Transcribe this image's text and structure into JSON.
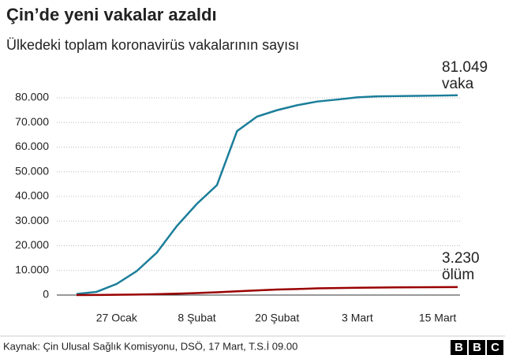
{
  "chart_data": {
    "type": "line",
    "title": "Çin’de yeni vakalar azaldı",
    "subtitle": "Ülkedeki toplam koronavirüs vakalarının sayısı",
    "categories": [
      null,
      null,
      "27 Ocak",
      null,
      null,
      null,
      "8 Şubat",
      null,
      null,
      null,
      "20 Şubat",
      null,
      null,
      null,
      "3 Mart",
      null,
      null,
      null,
      "15 Mart",
      null
    ],
    "series": [
      {
        "name": "vaka",
        "color": "#1b7e9a",
        "values": [
          440,
          1300,
          4500,
          9700,
          17200,
          28000,
          37000,
          44600,
          66500,
          72400,
          75000,
          77000,
          78500,
          79300,
          80200,
          80600,
          80700,
          80800,
          80900,
          81049
        ],
        "value_labels": [
          null,
          null,
          null,
          null,
          null,
          null,
          null,
          null,
          null,
          null,
          null,
          null,
          null,
          null,
          null,
          null,
          null,
          null,
          null,
          "81.049"
        ]
      },
      {
        "name": "ölüm",
        "color": "#990000",
        "values": [
          9,
          41,
          106,
          213,
          361,
          563,
          811,
          1113,
          1523,
          1868,
          2236,
          2445,
          2715,
          2835,
          2943,
          3042,
          3119,
          3176,
          3199,
          3230
        ],
        "value_labels": [
          null,
          null,
          null,
          null,
          null,
          null,
          null,
          null,
          null,
          null,
          null,
          null,
          null,
          null,
          null,
          null,
          null,
          null,
          null,
          "3.230"
        ]
      }
    ],
    "ylim": [
      0,
      80000
    ],
    "yticks": [
      0,
      {
        "value": 10000,
        "label": "10.000"
      },
      {
        "value": 20000,
        "label": "20.000"
      },
      {
        "value": 30000,
        "label": "30.000"
      },
      {
        "value": 40000,
        "label": "40.000"
      },
      {
        "value": 50000,
        "label": "50.000"
      },
      {
        "value": 60000,
        "label": "60.000"
      },
      {
        "value": 70000,
        "label": "70.000"
      },
      {
        "value": 80000,
        "label": "80.000"
      }
    ],
    "grid": true,
    "source": "Kaynak: Çin Ulusal Sağlık Komisyonu, DSÖ, 17 Mart, T.S.İ 09.00",
    "brand": [
      "B",
      "B",
      "C"
    ]
  }
}
